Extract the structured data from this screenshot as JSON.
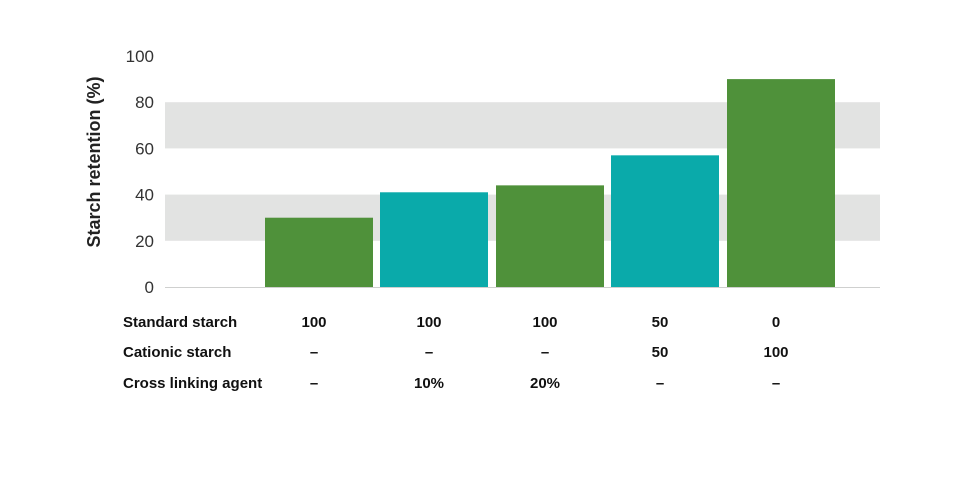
{
  "chart_data": {
    "type": "bar",
    "ylabel": "Starch retention (%)",
    "ylim": [
      0,
      100
    ],
    "yticks": [
      "0",
      "20",
      "40",
      "60",
      "80",
      "100"
    ],
    "grid_bands": [
      [
        20,
        40
      ],
      [
        60,
        80
      ]
    ],
    "values": [
      30,
      41,
      44,
      57,
      90
    ],
    "bar_colors": [
      "#4f913a",
      "#0aaaaa",
      "#4f913a",
      "#0aaaaa",
      "#4f913a"
    ],
    "band_color": "#e2e3e2",
    "table": {
      "rows": [
        {
          "label": "Standard starch",
          "values": [
            "100",
            "100",
            "100",
            "50",
            "0"
          ]
        },
        {
          "label": "Cationic starch",
          "values": [
            "–",
            "–",
            "–",
            "50",
            "100"
          ]
        },
        {
          "label": "Cross linking agent",
          "values": [
            "–",
            "10%",
            "20%",
            "–",
            "–"
          ]
        }
      ]
    }
  }
}
